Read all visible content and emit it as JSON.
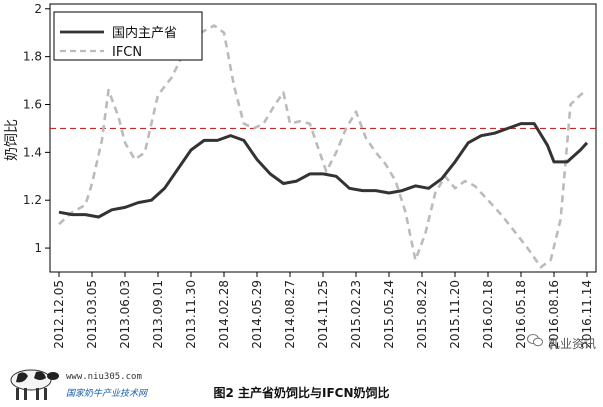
{
  "caption": "图2 主产省奶饲比与IFCN奶饲比",
  "watermark": "乳业资讯",
  "site_url": "www.niu305.com",
  "site_name": "国家奶牛产业技术网",
  "colors": {
    "domestic": "#333333",
    "ifcn": "#bbbbbb",
    "reference": "#c62828"
  },
  "chart_data": {
    "type": "line",
    "ylabel": "奶饲比",
    "ylim": [
      0.9,
      2.02
    ],
    "yticks": [
      1,
      1.2,
      1.4,
      1.6,
      1.8,
      2
    ],
    "xticks": [
      "2012.12.05",
      "2013.03.05",
      "2013.06.03",
      "2013.09.01",
      "2013.11.30",
      "2014.02.28",
      "2014.05.29",
      "2014.08.27",
      "2014.11.25",
      "2015.02.23",
      "2015.05.24",
      "2015.08.22",
      "2015.11.20",
      "2016.02.18",
      "2016.05.18",
      "2016.08.16",
      "2016.11.14"
    ],
    "reference_line": 1.5,
    "legend": [
      "国内主产省",
      "IFCN"
    ],
    "series": [
      {
        "name": "国内主产省",
        "x": [
          0,
          0.4,
          0.8,
          1.2,
          1.6,
          2,
          2.4,
          2.8,
          3.2,
          3.6,
          4,
          4.4,
          4.8,
          5.2,
          5.6,
          6,
          6.4,
          6.8,
          7.2,
          7.6,
          8,
          8.4,
          8.8,
          9.2,
          9.6,
          10,
          10.4,
          10.8,
          11.2,
          11.6,
          12,
          12.4,
          12.8,
          13.2,
          13.6,
          14,
          14.4,
          14.8,
          15,
          15.4,
          15.8,
          16
        ],
        "y": [
          1.15,
          1.14,
          1.14,
          1.13,
          1.16,
          1.17,
          1.19,
          1.2,
          1.25,
          1.33,
          1.41,
          1.45,
          1.45,
          1.47,
          1.45,
          1.37,
          1.31,
          1.27,
          1.28,
          1.31,
          1.31,
          1.3,
          1.25,
          1.24,
          1.24,
          1.23,
          1.24,
          1.26,
          1.25,
          1.29,
          1.36,
          1.44,
          1.47,
          1.48,
          1.5,
          1.52,
          1.52,
          1.43,
          1.36,
          1.36,
          1.41,
          1.44
        ]
      },
      {
        "name": "IFCN",
        "x": [
          0,
          0.4,
          0.8,
          1,
          1.3,
          1.5,
          1.8,
          2,
          2.3,
          2.6,
          3,
          3.4,
          3.8,
          4,
          4.3,
          4.7,
          5,
          5.3,
          5.6,
          5.9,
          6.2,
          6.5,
          6.8,
          7,
          7.3,
          7.6,
          7.8,
          8.1,
          8.4,
          8.7,
          9,
          9.3,
          9.6,
          9.9,
          10.2,
          10.5,
          10.8,
          11.1,
          11.4,
          11.7,
          12,
          12.3,
          12.6,
          13,
          13.4,
          13.8,
          14.2,
          14.6,
          14.9,
          15.2,
          15.5,
          15.8,
          16
        ],
        "y": [
          1.1,
          1.15,
          1.18,
          1.27,
          1.45,
          1.66,
          1.55,
          1.44,
          1.37,
          1.4,
          1.64,
          1.71,
          1.82,
          1.87,
          1.9,
          1.93,
          1.9,
          1.68,
          1.52,
          1.5,
          1.52,
          1.59,
          1.65,
          1.52,
          1.53,
          1.52,
          1.44,
          1.32,
          1.4,
          1.5,
          1.57,
          1.46,
          1.4,
          1.35,
          1.28,
          1.15,
          0.95,
          1.06,
          1.23,
          1.3,
          1.25,
          1.28,
          1.26,
          1.2,
          1.14,
          1.07,
          1.0,
          0.92,
          0.95,
          1.12,
          1.6,
          1.64,
          1.66
        ]
      }
    ]
  }
}
